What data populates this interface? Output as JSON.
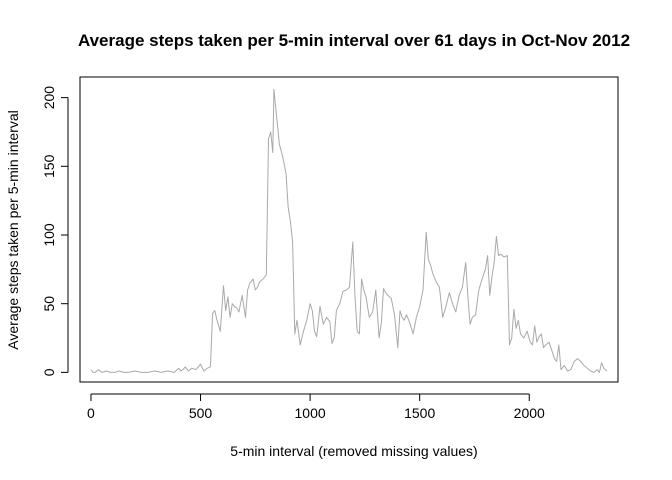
{
  "chart_data": {
    "type": "line",
    "title": "Average steps taken per 5-min interval over 61 days in Oct-Nov 2012",
    "xlabel": "5-min interval (removed missing values)",
    "ylabel": "Average steps taken per 5-min interval",
    "xlim": [
      -50,
      2405
    ],
    "ylim": [
      -7,
      215
    ],
    "x_ticks": [
      0,
      500,
      1000,
      1500,
      2000
    ],
    "y_ticks": [
      0,
      50,
      100,
      150,
      200
    ],
    "grid": false,
    "legend": "none",
    "line_color": "#a9a9a9",
    "series": [
      {
        "x": [
          0,
          10,
          20,
          35,
          50,
          70,
          90,
          110,
          130,
          150,
          170,
          200,
          230,
          260,
          290,
          320,
          350,
          380,
          400,
          410,
          420,
          430,
          445,
          460,
          480,
          500,
          515,
          530,
          545,
          555,
          565,
          575,
          590,
          605,
          615,
          625,
          635,
          645,
          655,
          665,
          675,
          690,
          705,
          715,
          725,
          740,
          750,
          760,
          770,
          785,
          800,
          810,
          820,
          830,
          835,
          845,
          860,
          875,
          890,
          900,
          910,
          920,
          930,
          940,
          955,
          970,
          985,
          1000,
          1010,
          1020,
          1030,
          1045,
          1060,
          1075,
          1090,
          1100,
          1110,
          1120,
          1135,
          1150,
          1165,
          1180,
          1195,
          1205,
          1215,
          1225,
          1235,
          1245,
          1255,
          1270,
          1285,
          1300,
          1315,
          1325,
          1335,
          1345,
          1355,
          1370,
          1385,
          1400,
          1410,
          1420,
          1430,
          1440,
          1455,
          1470,
          1485,
          1500,
          1515,
          1530,
          1540,
          1550,
          1560,
          1575,
          1590,
          1605,
          1620,
          1635,
          1650,
          1665,
          1680,
          1695,
          1710,
          1720,
          1730,
          1740,
          1755,
          1770,
          1785,
          1800,
          1810,
          1820,
          1830,
          1840,
          1850,
          1860,
          1870,
          1885,
          1900,
          1910,
          1920,
          1930,
          1940,
          1950,
          1960,
          1975,
          1990,
          2005,
          2015,
          2025,
          2035,
          2045,
          2055,
          2065,
          2075,
          2090,
          2105,
          2115,
          2125,
          2135,
          2145,
          2160,
          2175,
          2190,
          2205,
          2220,
          2235,
          2250,
          2265,
          2280,
          2295,
          2310,
          2320,
          2330,
          2340,
          2355
        ],
        "values": [
          2,
          0,
          0,
          2,
          0,
          1,
          0,
          0,
          1,
          0,
          0,
          1,
          0,
          0,
          1,
          0,
          1,
          0,
          3,
          1,
          2,
          4,
          1,
          3,
          2,
          6,
          1,
          3,
          4,
          43,
          45,
          38,
          30,
          63,
          45,
          55,
          40,
          50,
          48,
          47,
          44,
          56,
          40,
          60,
          65,
          68,
          60,
          62,
          66,
          68,
          71,
          170,
          175,
          160,
          206,
          190,
          166,
          157,
          145,
          120,
          110,
          95,
          28,
          38,
          20,
          30,
          38,
          50,
          45,
          30,
          26,
          48,
          35,
          40,
          37,
          21,
          25,
          45,
          50,
          59,
          60,
          62,
          95,
          55,
          30,
          28,
          68,
          60,
          55,
          40,
          44,
          60,
          25,
          36,
          61,
          58,
          56,
          54,
          42,
          18,
          45,
          40,
          38,
          42,
          36,
          28,
          40,
          48,
          60,
          102,
          82,
          78,
          72,
          66,
          62,
          40,
          48,
          58,
          50,
          44,
          56,
          62,
          80,
          55,
          35,
          40,
          42,
          60,
          68,
          75,
          85,
          56,
          70,
          80,
          99,
          85,
          86,
          84,
          85,
          20,
          25,
          46,
          32,
          38,
          28,
          25,
          30,
          22,
          20,
          34,
          22,
          26,
          28,
          18,
          20,
          22,
          15,
          10,
          8,
          20,
          2,
          5,
          1,
          2,
          8,
          10,
          8,
          5,
          3,
          1,
          0,
          2,
          0,
          7,
          3,
          1
        ]
      }
    ]
  }
}
